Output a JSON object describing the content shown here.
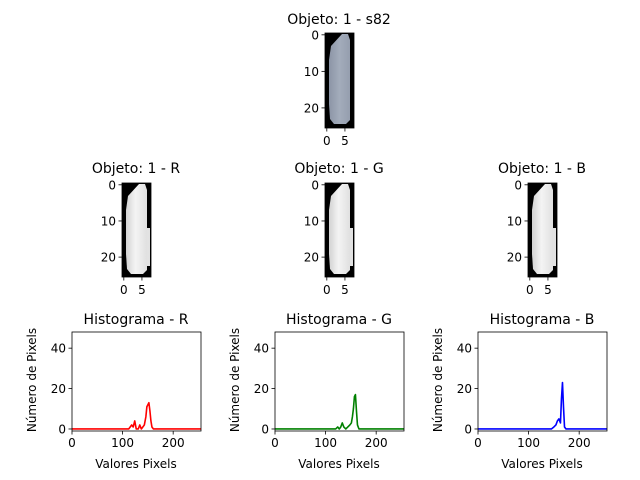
{
  "figure": {
    "top_title": "Objeto: 1 - s82",
    "channel_titles": [
      "Objeto: 1 - R",
      "Objeto: 1 - G",
      "Objeto: 1 - B"
    ],
    "image_xticks": [
      "0",
      "5"
    ],
    "image_yticks": [
      "0",
      "10",
      "20"
    ]
  },
  "chart_data": [
    {
      "type": "line",
      "title": "Histograma - R",
      "xlabel": "Valores Pixels",
      "ylabel": "Número de Pixels",
      "xlim": [
        0,
        255
      ],
      "ylim": [
        -1,
        48
      ],
      "xticks": [
        0,
        100,
        200
      ],
      "yticks": [
        0,
        20,
        40
      ],
      "color": "#ff0000",
      "series": [
        {
          "x": [
            0,
            112,
            115,
            118,
            121,
            124,
            127,
            131,
            134,
            137,
            140,
            143,
            146,
            148,
            150,
            152,
            154,
            156,
            158,
            161,
            165,
            255
          ],
          "y": [
            0,
            0,
            1,
            2,
            1,
            4,
            0,
            0,
            2,
            0,
            1,
            2,
            6,
            11,
            12,
            13,
            9,
            4,
            1,
            0,
            0,
            0
          ]
        }
      ]
    },
    {
      "type": "line",
      "title": "Histograma - G",
      "xlabel": "Valores Pixels",
      "ylabel": "Número de Pixels",
      "xlim": [
        0,
        255
      ],
      "ylim": [
        -1,
        48
      ],
      "xticks": [
        0,
        100,
        200
      ],
      "yticks": [
        0,
        20,
        40
      ],
      "color": "#008000",
      "series": [
        {
          "x": [
            0,
            120,
            124,
            127,
            130,
            133,
            136,
            140,
            144,
            148,
            151,
            153,
            155,
            157,
            159,
            161,
            163,
            166,
            255
          ],
          "y": [
            0,
            0,
            1,
            0,
            1,
            3,
            1,
            0,
            1,
            2,
            3,
            6,
            10,
            16,
            17,
            9,
            2,
            0,
            0
          ]
        }
      ]
    },
    {
      "type": "line",
      "title": "Histograma - B",
      "xlabel": "Valores Pixels",
      "ylabel": "Número de Pixels",
      "xlim": [
        0,
        255
      ],
      "ylim": [
        -1,
        48
      ],
      "xticks": [
        0,
        100,
        200
      ],
      "yticks": [
        0,
        20,
        40
      ],
      "color": "#0000ff",
      "series": [
        {
          "x": [
            0,
            145,
            150,
            154,
            157,
            160,
            163,
            165,
            167,
            169,
            171,
            174,
            255
          ],
          "y": [
            0,
            0,
            1,
            2,
            4,
            5,
            3,
            15,
            23,
            11,
            1,
            0,
            0
          ]
        }
      ]
    }
  ]
}
